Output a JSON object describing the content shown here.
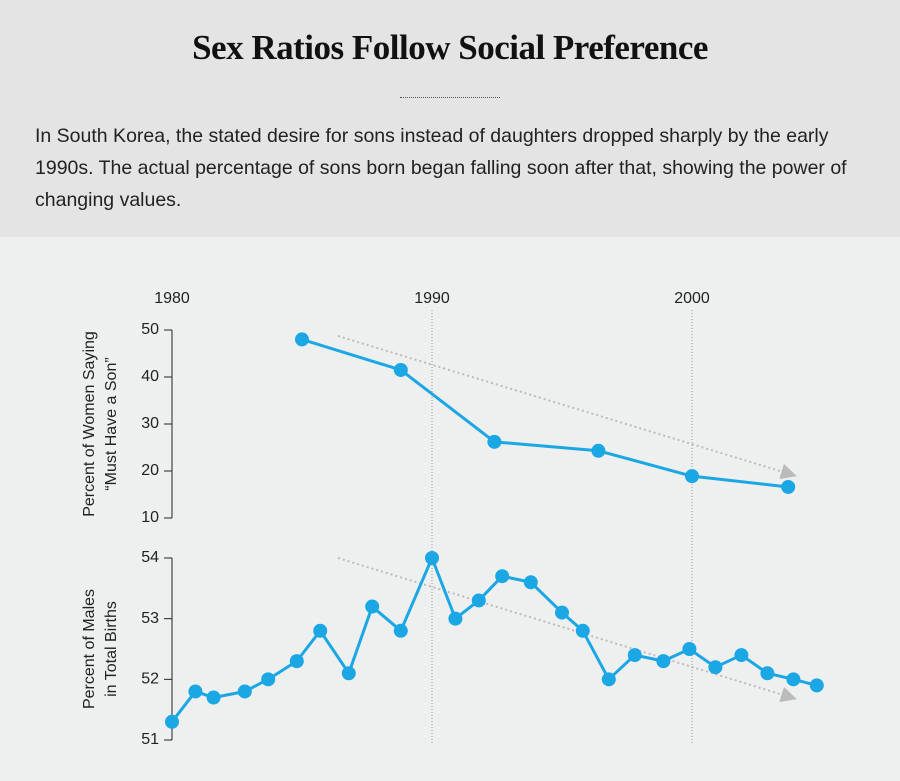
{
  "chart_data": [
    {
      "type": "line",
      "title": "Sex Ratios Follow Social Preference",
      "subtitle": "In South Korea, the stated desire for sons instead of daughters dropped sharply by the early 1990s. The actual percentage of sons born began falling soon after that, showing the power of changing values.",
      "ylabel": [
        "Percent of Women Saying",
        "“Must Have a Son”"
      ],
      "x": [
        1985,
        1988.8,
        1992.4,
        1996.4,
        2000,
        2003.7
      ],
      "values": [
        48,
        41.5,
        26.2,
        24.3,
        18.9,
        16.6
      ],
      "color": "#1ba6e4",
      "xlim": [
        1980,
        2005
      ],
      "xticks": [
        1980,
        1990,
        2000
      ],
      "ylim": [
        10,
        50
      ],
      "yticks": [
        10,
        20,
        30,
        40,
        50
      ],
      "grid": true
    },
    {
      "type": "line",
      "ylabel": [
        "Percent of Males",
        "in Total Births"
      ],
      "x": [
        1980,
        1980.9,
        1981.6,
        1982.8,
        1983.7,
        1984.8,
        1985.7,
        1986.8,
        1987.7,
        1988.8,
        1990,
        1990.9,
        1991.8,
        1992.7,
        1993.8,
        1995,
        1995.8,
        1996.8,
        1997.8,
        1998.9,
        1999.9,
        2000.9,
        2001.9,
        2002.9,
        2003.9,
        2004.8
      ],
      "values": [
        51.3,
        51.8,
        51.7,
        51.8,
        52.0,
        52.3,
        52.8,
        52.1,
        53.2,
        52.8,
        54.0,
        53.0,
        53.3,
        53.7,
        53.6,
        53.1,
        52.8,
        52.0,
        52.4,
        52.3,
        52.5,
        52.2,
        52.4,
        52.1,
        52.0,
        51.9
      ],
      "color": "#1ba6e4",
      "xlim": [
        1980,
        2005
      ],
      "xticks": [
        1980,
        1990,
        2000
      ],
      "ylim": [
        51,
        54
      ],
      "yticks": [
        51,
        52,
        53,
        54
      ],
      "grid": true
    }
  ]
}
